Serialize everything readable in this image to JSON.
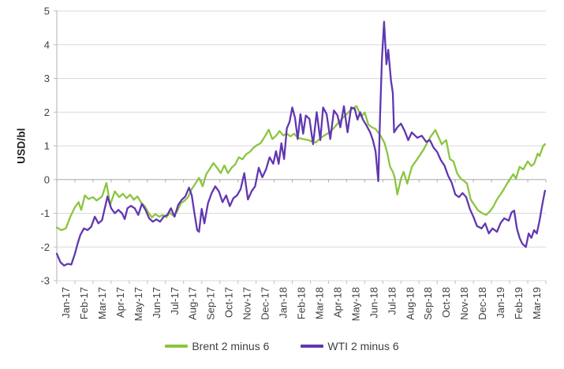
{
  "chart_data": {
    "type": "line",
    "title": "",
    "ylabel": "USD/bl",
    "ylim": [
      -3,
      5
    ],
    "yticks": [
      5,
      4,
      3,
      2,
      1,
      0,
      -1,
      -2,
      -3
    ],
    "x_axis_note": "x values are months elapsed since start of Jan-2017; fractions are position within the month",
    "x_tick_labels": [
      "Jan-17",
      "Feb-17",
      "Mar-17",
      "Apr-17",
      "May-17",
      "Jun-17",
      "Jul-17",
      "Aug-17",
      "Sep-17",
      "Oct-17",
      "Nov-17",
      "Dec-17",
      "Jan-18",
      "Feb-18",
      "Mar-18",
      "Apr-18",
      "May-18",
      "Jun-18",
      "Jul-18",
      "Aug-18",
      "Sep-18",
      "Oct-18",
      "Nov-18",
      "Dec-18",
      "Jan-19",
      "Feb-19",
      "Mar-19"
    ],
    "grid": "horizontal",
    "legend_position": "bottom-center",
    "colors": {
      "grid": "#d9d9d9",
      "zero_axis": "#a9a9a9",
      "axis_line": "#bfbfbf",
      "tick_text": "#3f3f3f"
    },
    "series": [
      {
        "name": "Brent 2 minus 6",
        "color": "#8BC540",
        "points": [
          [
            0,
            -1.42
          ],
          [
            0.25,
            -1.5
          ],
          [
            0.5,
            -1.45
          ],
          [
            0.75,
            -1.1
          ],
          [
            1,
            -0.82
          ],
          [
            1.2,
            -0.67
          ],
          [
            1.35,
            -0.9
          ],
          [
            1.55,
            -0.47
          ],
          [
            1.75,
            -0.58
          ],
          [
            2,
            -0.52
          ],
          [
            2.2,
            -0.62
          ],
          [
            2.5,
            -0.5
          ],
          [
            2.74,
            -0.1
          ],
          [
            2.95,
            -0.75
          ],
          [
            3.2,
            -0.35
          ],
          [
            3.45,
            -0.52
          ],
          [
            3.65,
            -0.42
          ],
          [
            3.85,
            -0.55
          ],
          [
            4.05,
            -0.45
          ],
          [
            4.25,
            -0.6
          ],
          [
            4.45,
            -0.5
          ],
          [
            4.65,
            -0.68
          ],
          [
            4.85,
            -0.79
          ],
          [
            5.05,
            -0.98
          ],
          [
            5.25,
            -1.12
          ],
          [
            5.45,
            -1.02
          ],
          [
            5.65,
            -1.1
          ],
          [
            5.85,
            -1.05
          ],
          [
            6.05,
            -1.12
          ],
          [
            6.25,
            -0.98
          ],
          [
            6.45,
            -1.08
          ],
          [
            6.65,
            -0.94
          ],
          [
            6.85,
            -0.7
          ],
          [
            7.05,
            -0.63
          ],
          [
            7.25,
            -0.52
          ],
          [
            7.45,
            -0.28
          ],
          [
            7.65,
            -0.12
          ],
          [
            7.85,
            0.05
          ],
          [
            8.05,
            -0.2
          ],
          [
            8.25,
            0.16
          ],
          [
            8.45,
            0.32
          ],
          [
            8.65,
            0.49
          ],
          [
            8.85,
            0.35
          ],
          [
            9.05,
            0.19
          ],
          [
            9.25,
            0.42
          ],
          [
            9.45,
            0.19
          ],
          [
            9.65,
            0.35
          ],
          [
            9.85,
            0.45
          ],
          [
            10.05,
            0.66
          ],
          [
            10.25,
            0.6
          ],
          [
            10.45,
            0.75
          ],
          [
            10.65,
            0.82
          ],
          [
            10.85,
            0.94
          ],
          [
            11.05,
            1.02
          ],
          [
            11.25,
            1.08
          ],
          [
            11.5,
            1.29
          ],
          [
            11.7,
            1.48
          ],
          [
            11.9,
            1.2
          ],
          [
            12.1,
            1.3
          ],
          [
            12.3,
            1.44
          ],
          [
            12.5,
            1.31
          ],
          [
            12.7,
            1.36
          ],
          [
            12.9,
            1.28
          ],
          [
            13.1,
            1.36
          ],
          [
            13.3,
            1.24
          ],
          [
            13.6,
            1.2
          ],
          [
            13.9,
            1.17
          ],
          [
            14.1,
            1.12
          ],
          [
            14.3,
            1.1
          ],
          [
            14.6,
            1.25
          ],
          [
            14.9,
            1.35
          ],
          [
            15.15,
            1.44
          ],
          [
            15.45,
            1.63
          ],
          [
            15.7,
            1.78
          ],
          [
            16,
            1.94
          ],
          [
            16.3,
            2.1
          ],
          [
            16.55,
            2.18
          ],
          [
            16.8,
            1.87
          ],
          [
            17,
            1.99
          ],
          [
            17.2,
            1.63
          ],
          [
            17.4,
            1.55
          ],
          [
            17.6,
            1.5
          ],
          [
            17.9,
            1.28
          ],
          [
            18.1,
            1.08
          ],
          [
            18.25,
            0.77
          ],
          [
            18.4,
            0.38
          ],
          [
            18.55,
            0.23
          ],
          [
            18.65,
            0.07
          ],
          [
            18.8,
            -0.44
          ],
          [
            19,
            0.03
          ],
          [
            19.15,
            0.23
          ],
          [
            19.35,
            -0.12
          ],
          [
            19.6,
            0.38
          ],
          [
            19.9,
            0.61
          ],
          [
            20.25,
            0.89
          ],
          [
            20.6,
            1.24
          ],
          [
            20.9,
            1.47
          ],
          [
            21.25,
            1.05
          ],
          [
            21.5,
            1.17
          ],
          [
            21.7,
            0.61
          ],
          [
            21.9,
            0.54
          ],
          [
            22.1,
            0.19
          ],
          [
            22.3,
            0.03
          ],
          [
            22.5,
            -0.05
          ],
          [
            22.65,
            -0.12
          ],
          [
            22.85,
            -0.59
          ],
          [
            23.05,
            -0.75
          ],
          [
            23.25,
            -0.91
          ],
          [
            23.5,
            -1.0
          ],
          [
            23.7,
            -1.05
          ],
          [
            23.9,
            -0.95
          ],
          [
            24.1,
            -0.8
          ],
          [
            24.3,
            -0.59
          ],
          [
            24.6,
            -0.36
          ],
          [
            24.9,
            -0.08
          ],
          [
            25.2,
            0.16
          ],
          [
            25.35,
            0.03
          ],
          [
            25.55,
            0.38
          ],
          [
            25.75,
            0.3
          ],
          [
            26,
            0.54
          ],
          [
            26.2,
            0.4
          ],
          [
            26.35,
            0.47
          ],
          [
            26.55,
            0.77
          ],
          [
            26.65,
            0.7
          ],
          [
            26.85,
            1.0
          ],
          [
            26.95,
            1.05
          ]
        ]
      },
      {
        "name": "WTI 2 minus 6",
        "color": "#6137B1",
        "points": [
          [
            0,
            -2.2
          ],
          [
            0.2,
            -2.45
          ],
          [
            0.4,
            -2.55
          ],
          [
            0.6,
            -2.5
          ],
          [
            0.8,
            -2.52
          ],
          [
            1,
            -2.2
          ],
          [
            1.15,
            -1.9
          ],
          [
            1.3,
            -1.64
          ],
          [
            1.5,
            -1.45
          ],
          [
            1.7,
            -1.5
          ],
          [
            1.9,
            -1.4
          ],
          [
            2.1,
            -1.1
          ],
          [
            2.3,
            -1.3
          ],
          [
            2.5,
            -1.2
          ],
          [
            2.8,
            -0.5
          ],
          [
            3,
            -0.85
          ],
          [
            3.2,
            -1.0
          ],
          [
            3.4,
            -0.9
          ],
          [
            3.6,
            -1.0
          ],
          [
            3.75,
            -1.17
          ],
          [
            3.9,
            -0.85
          ],
          [
            4.1,
            -0.78
          ],
          [
            4.3,
            -0.85
          ],
          [
            4.5,
            -1.05
          ],
          [
            4.7,
            -0.72
          ],
          [
            4.9,
            -0.9
          ],
          [
            5.1,
            -1.15
          ],
          [
            5.3,
            -1.25
          ],
          [
            5.5,
            -1.18
          ],
          [
            5.7,
            -1.25
          ],
          [
            5.9,
            -1.1
          ],
          [
            6.1,
            -1.05
          ],
          [
            6.3,
            -0.85
          ],
          [
            6.5,
            -1.1
          ],
          [
            6.7,
            -0.75
          ],
          [
            6.9,
            -0.6
          ],
          [
            7.1,
            -0.5
          ],
          [
            7.3,
            -0.24
          ],
          [
            7.45,
            -0.47
          ],
          [
            7.6,
            -1.0
          ],
          [
            7.75,
            -1.5
          ],
          [
            7.85,
            -1.55
          ],
          [
            8,
            -0.87
          ],
          [
            8.15,
            -1.3
          ],
          [
            8.35,
            -0.7
          ],
          [
            8.55,
            -0.4
          ],
          [
            8.75,
            -0.2
          ],
          [
            8.95,
            -0.35
          ],
          [
            9.15,
            -0.67
          ],
          [
            9.35,
            -0.47
          ],
          [
            9.55,
            -0.79
          ],
          [
            9.75,
            -0.55
          ],
          [
            9.95,
            -0.47
          ],
          [
            10.15,
            -0.28
          ],
          [
            10.35,
            0.19
          ],
          [
            10.55,
            -0.59
          ],
          [
            10.75,
            -0.35
          ],
          [
            10.95,
            -0.2
          ],
          [
            11.15,
            0.35
          ],
          [
            11.35,
            0.07
          ],
          [
            11.55,
            0.3
          ],
          [
            11.75,
            0.66
          ],
          [
            11.95,
            0.47
          ],
          [
            12.1,
            0.84
          ],
          [
            12.25,
            0.47
          ],
          [
            12.4,
            1.08
          ],
          [
            12.55,
            0.61
          ],
          [
            12.7,
            1.52
          ],
          [
            12.85,
            1.71
          ],
          [
            13,
            2.14
          ],
          [
            13.15,
            1.83
          ],
          [
            13.3,
            1.2
          ],
          [
            13.45,
            1.94
          ],
          [
            13.6,
            1.36
          ],
          [
            13.75,
            1.9
          ],
          [
            13.95,
            1.8
          ],
          [
            14.15,
            1.05
          ],
          [
            14.35,
            2.0
          ],
          [
            14.55,
            1.17
          ],
          [
            14.7,
            2.14
          ],
          [
            14.9,
            1.94
          ],
          [
            15.1,
            1.2
          ],
          [
            15.3,
            2.05
          ],
          [
            15.5,
            1.9
          ],
          [
            15.65,
            1.55
          ],
          [
            15.85,
            2.18
          ],
          [
            16.05,
            1.4
          ],
          [
            16.25,
            2.14
          ],
          [
            16.45,
            2.1
          ],
          [
            16.6,
            1.78
          ],
          [
            16.75,
            2.0
          ],
          [
            16.9,
            1.78
          ],
          [
            17.1,
            1.6
          ],
          [
            17.3,
            1.4
          ],
          [
            17.45,
            1.17
          ],
          [
            17.6,
            0.84
          ],
          [
            17.75,
            -0.05
          ],
          [
            17.85,
            1.94
          ],
          [
            17.95,
            3.58
          ],
          [
            18.07,
            4.68
          ],
          [
            18.2,
            3.42
          ],
          [
            18.3,
            3.85
          ],
          [
            18.45,
            2.93
          ],
          [
            18.55,
            2.57
          ],
          [
            18.62,
            1.4
          ],
          [
            18.8,
            1.55
          ],
          [
            19,
            1.66
          ],
          [
            19.2,
            1.45
          ],
          [
            19.4,
            1.17
          ],
          [
            19.6,
            1.4
          ],
          [
            19.9,
            1.24
          ],
          [
            20.15,
            1.3
          ],
          [
            20.4,
            1.12
          ],
          [
            20.6,
            1.17
          ],
          [
            20.8,
            0.95
          ],
          [
            21,
            0.82
          ],
          [
            21.2,
            0.58
          ],
          [
            21.4,
            0.42
          ],
          [
            21.6,
            0.12
          ],
          [
            21.8,
            -0.09
          ],
          [
            22,
            -0.44
          ],
          [
            22.2,
            -0.52
          ],
          [
            22.4,
            -0.4
          ],
          [
            22.6,
            -0.52
          ],
          [
            22.8,
            -0.87
          ],
          [
            23,
            -1.1
          ],
          [
            23.2,
            -1.38
          ],
          [
            23.45,
            -1.45
          ],
          [
            23.65,
            -1.3
          ],
          [
            23.85,
            -1.6
          ],
          [
            24.05,
            -1.45
          ],
          [
            24.3,
            -1.55
          ],
          [
            24.5,
            -1.29
          ],
          [
            24.7,
            -1.15
          ],
          [
            24.95,
            -1.22
          ],
          [
            25.1,
            -0.98
          ],
          [
            25.25,
            -0.92
          ],
          [
            25.4,
            -1.45
          ],
          [
            25.55,
            -1.73
          ],
          [
            25.7,
            -1.9
          ],
          [
            25.9,
            -2.0
          ],
          [
            26.05,
            -1.6
          ],
          [
            26.2,
            -1.73
          ],
          [
            26.35,
            -1.5
          ],
          [
            26.5,
            -1.6
          ],
          [
            26.65,
            -1.22
          ],
          [
            26.8,
            -0.75
          ],
          [
            26.95,
            -0.33
          ]
        ]
      }
    ]
  }
}
